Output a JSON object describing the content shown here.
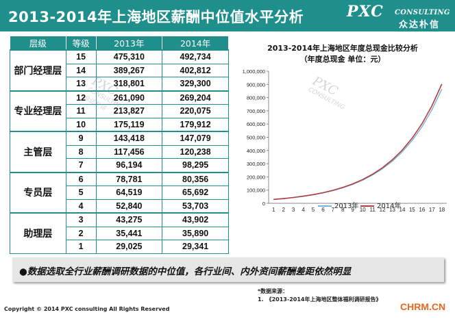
{
  "header": {
    "title": "2013-2014年上海地区薪酬中位值水平分析",
    "logo_main": "PXC",
    "logo_sub": "CONSULTING",
    "logo_cn": "众达朴信"
  },
  "table": {
    "headers": [
      "层级",
      "等级",
      "2013年",
      "2014年"
    ],
    "groups": [
      {
        "level": "部门经理层",
        "rows": [
          [
            "15",
            "475,310",
            "492,734"
          ],
          [
            "14",
            "389,267",
            "402,812"
          ],
          [
            "13",
            "318,801",
            "329,300"
          ]
        ]
      },
      {
        "level": "专业经理层",
        "rows": [
          [
            "12",
            "261,090",
            "269,204"
          ],
          [
            "11",
            "213,827",
            "220,075"
          ],
          [
            "10",
            "175,119",
            "179,912"
          ]
        ]
      },
      {
        "level": "主管层",
        "rows": [
          [
            "9",
            "143,418",
            "147,079"
          ],
          [
            "8",
            "117,456",
            "120,238"
          ],
          [
            "7",
            "96,194",
            "98,295"
          ]
        ]
      },
      {
        "level": "专员层",
        "rows": [
          [
            "6",
            "78,781",
            "80,356"
          ],
          [
            "5",
            "64,519",
            "65,692"
          ],
          [
            "4",
            "52,840",
            "53,703"
          ]
        ]
      },
      {
        "level": "助理层",
        "rows": [
          [
            "3",
            "43,275",
            "43,902"
          ],
          [
            "2",
            "35,441",
            "35,890"
          ],
          [
            "1",
            "29,025",
            "29,341"
          ]
        ]
      }
    ]
  },
  "chart_data": {
    "type": "line",
    "title": "2013-2014年上海地区年度总现金比较分析",
    "subtitle": "（年度总现金 单位：元）",
    "categories": [
      "1",
      "2",
      "3",
      "4",
      "5",
      "6",
      "7",
      "8",
      "9",
      "10",
      "11",
      "12",
      "13",
      "14",
      "15",
      "16",
      "17",
      "18"
    ],
    "yticks": [
      "0",
      "100,000",
      "200,000",
      "300,000",
      "400,000",
      "500,000",
      "600,000",
      "700,000",
      "800,000",
      "900,000",
      "1,000,000"
    ],
    "ylim": [
      0,
      1000000
    ],
    "series": [
      {
        "name": "2013年",
        "color": "#6fb3d9",
        "values": [
          29025,
          35441,
          43275,
          52840,
          64519,
          78781,
          96194,
          117456,
          143418,
          175119,
          213827,
          261090,
          318801,
          389267,
          475310,
          580000,
          708000,
          865000
        ]
      },
      {
        "name": "2014年",
        "color": "#b23b3b",
        "values": [
          29341,
          35890,
          43902,
          53703,
          65692,
          80356,
          98295,
          120238,
          147079,
          179912,
          220075,
          269204,
          329300,
          402812,
          492734,
          603000,
          738000,
          903000
        ]
      }
    ],
    "legend": "bottom"
  },
  "note": {
    "text": "数据选取全行业薪酬调研数据的中位值，各行业间、内外资间薪酬差距依然明显"
  },
  "source": {
    "label": "*数据来源：",
    "item": "1.　《2013-2014年上海地区整体福利调研报告》"
  },
  "watermark": {
    "main": "PXC",
    "sub": "CONSULTING",
    "cn": "众达朴信"
  },
  "footer": {
    "copyright": "Copyright © 2014  PXC consulting All Rights Reserved",
    "site": "CHRM.CN"
  },
  "colors": {
    "accent": "#1e8f8b",
    "site": "#e8681e"
  }
}
